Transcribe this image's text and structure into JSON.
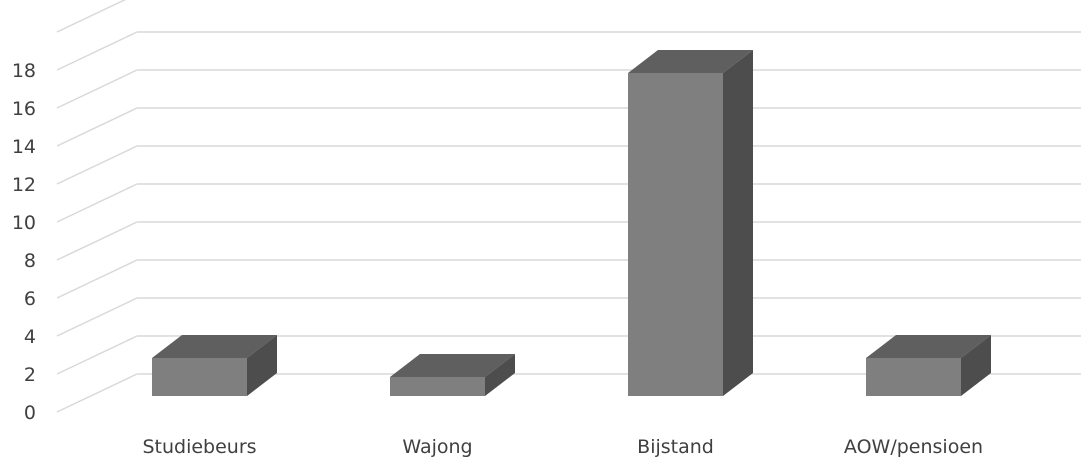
{
  "chart_data": {
    "type": "bar",
    "style": "3d-column",
    "categories": [
      "Studiebeurs",
      "Wajong",
      "Bijstand",
      "AOW/pensioen"
    ],
    "values": [
      2,
      1,
      17,
      2
    ],
    "title": "",
    "xlabel": "",
    "ylabel": "",
    "ylim": [
      0,
      20
    ],
    "yticks": [
      0,
      2,
      4,
      6,
      8,
      10,
      12,
      14,
      16,
      18
    ],
    "grid": true,
    "legend": "none",
    "colors": {
      "front": "#7f7f7f",
      "top": "#5f5f5f",
      "side": "#4d4d4d",
      "grid": "#d9d9d9",
      "text": "#404040"
    }
  }
}
